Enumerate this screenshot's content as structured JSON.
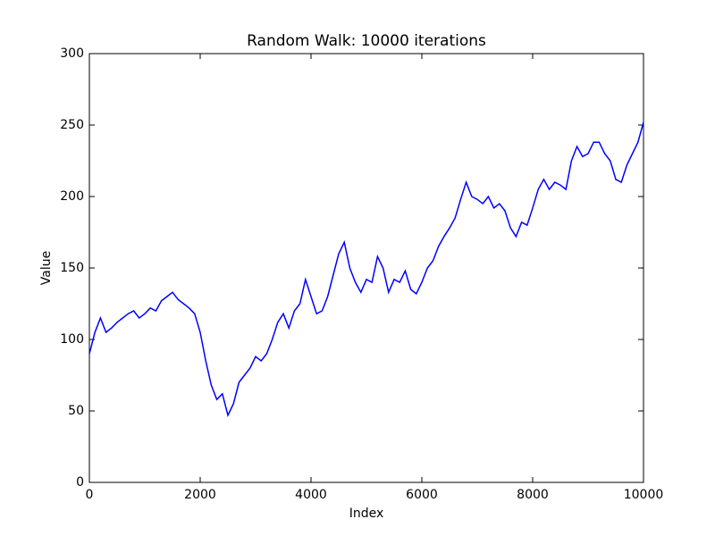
{
  "chart_data": {
    "type": "line",
    "title": "Random Walk: 10000 iterations",
    "x_label": "Index",
    "y_label": "Value",
    "x": [
      0,
      100,
      200,
      300,
      400,
      500,
      600,
      700,
      800,
      900,
      1000,
      1100,
      1200,
      1300,
      1400,
      1500,
      1600,
      1700,
      1800,
      1900,
      2000,
      2100,
      2200,
      2300,
      2400,
      2500,
      2600,
      2700,
      2800,
      2900,
      3000,
      3100,
      3200,
      3300,
      3400,
      3500,
      3600,
      3700,
      3800,
      3900,
      4000,
      4100,
      4200,
      4300,
      4400,
      4500,
      4600,
      4700,
      4800,
      4900,
      5000,
      5100,
      5200,
      5300,
      5400,
      5500,
      5600,
      5700,
      5800,
      5900,
      6000,
      6100,
      6200,
      6300,
      6400,
      6500,
      6600,
      6700,
      6800,
      6900,
      7000,
      7100,
      7200,
      7300,
      7400,
      7500,
      7600,
      7700,
      7800,
      7900,
      8000,
      8100,
      8200,
      8300,
      8400,
      8500,
      8600,
      8700,
      8800,
      8900,
      9000,
      9100,
      9200,
      9300,
      9400,
      9500,
      9600,
      9700,
      9800,
      9900,
      10000
    ],
    "series": [
      {
        "name": "Value",
        "color": "#0000ff",
        "values": [
          90,
          105,
          115,
          105,
          108,
          112,
          115,
          118,
          120,
          115,
          118,
          122,
          120,
          127,
          130,
          133,
          128,
          125,
          122,
          118,
          105,
          85,
          68,
          58,
          62,
          47,
          55,
          70,
          75,
          80,
          88,
          85,
          90,
          100,
          112,
          118,
          108,
          120,
          125,
          142,
          130,
          118,
          120,
          130,
          145,
          160,
          168,
          150,
          140,
          133,
          142,
          140,
          158,
          150,
          133,
          142,
          140,
          148,
          135,
          132,
          140,
          150,
          155,
          165,
          172,
          178,
          185,
          198,
          210,
          200,
          198,
          195,
          200,
          192,
          195,
          190,
          178,
          172,
          182,
          180,
          192,
          205,
          212,
          205,
          210,
          208,
          205,
          225,
          235,
          228,
          230,
          238,
          238,
          230,
          225,
          212,
          210,
          222,
          230,
          238,
          252
        ]
      }
    ],
    "xlim": [
      0,
      10000
    ],
    "ylim": [
      0,
      300
    ],
    "xticks": [
      0,
      2000,
      4000,
      6000,
      8000,
      10000
    ],
    "yticks": [
      0,
      50,
      100,
      150,
      200,
      250,
      300
    ]
  }
}
